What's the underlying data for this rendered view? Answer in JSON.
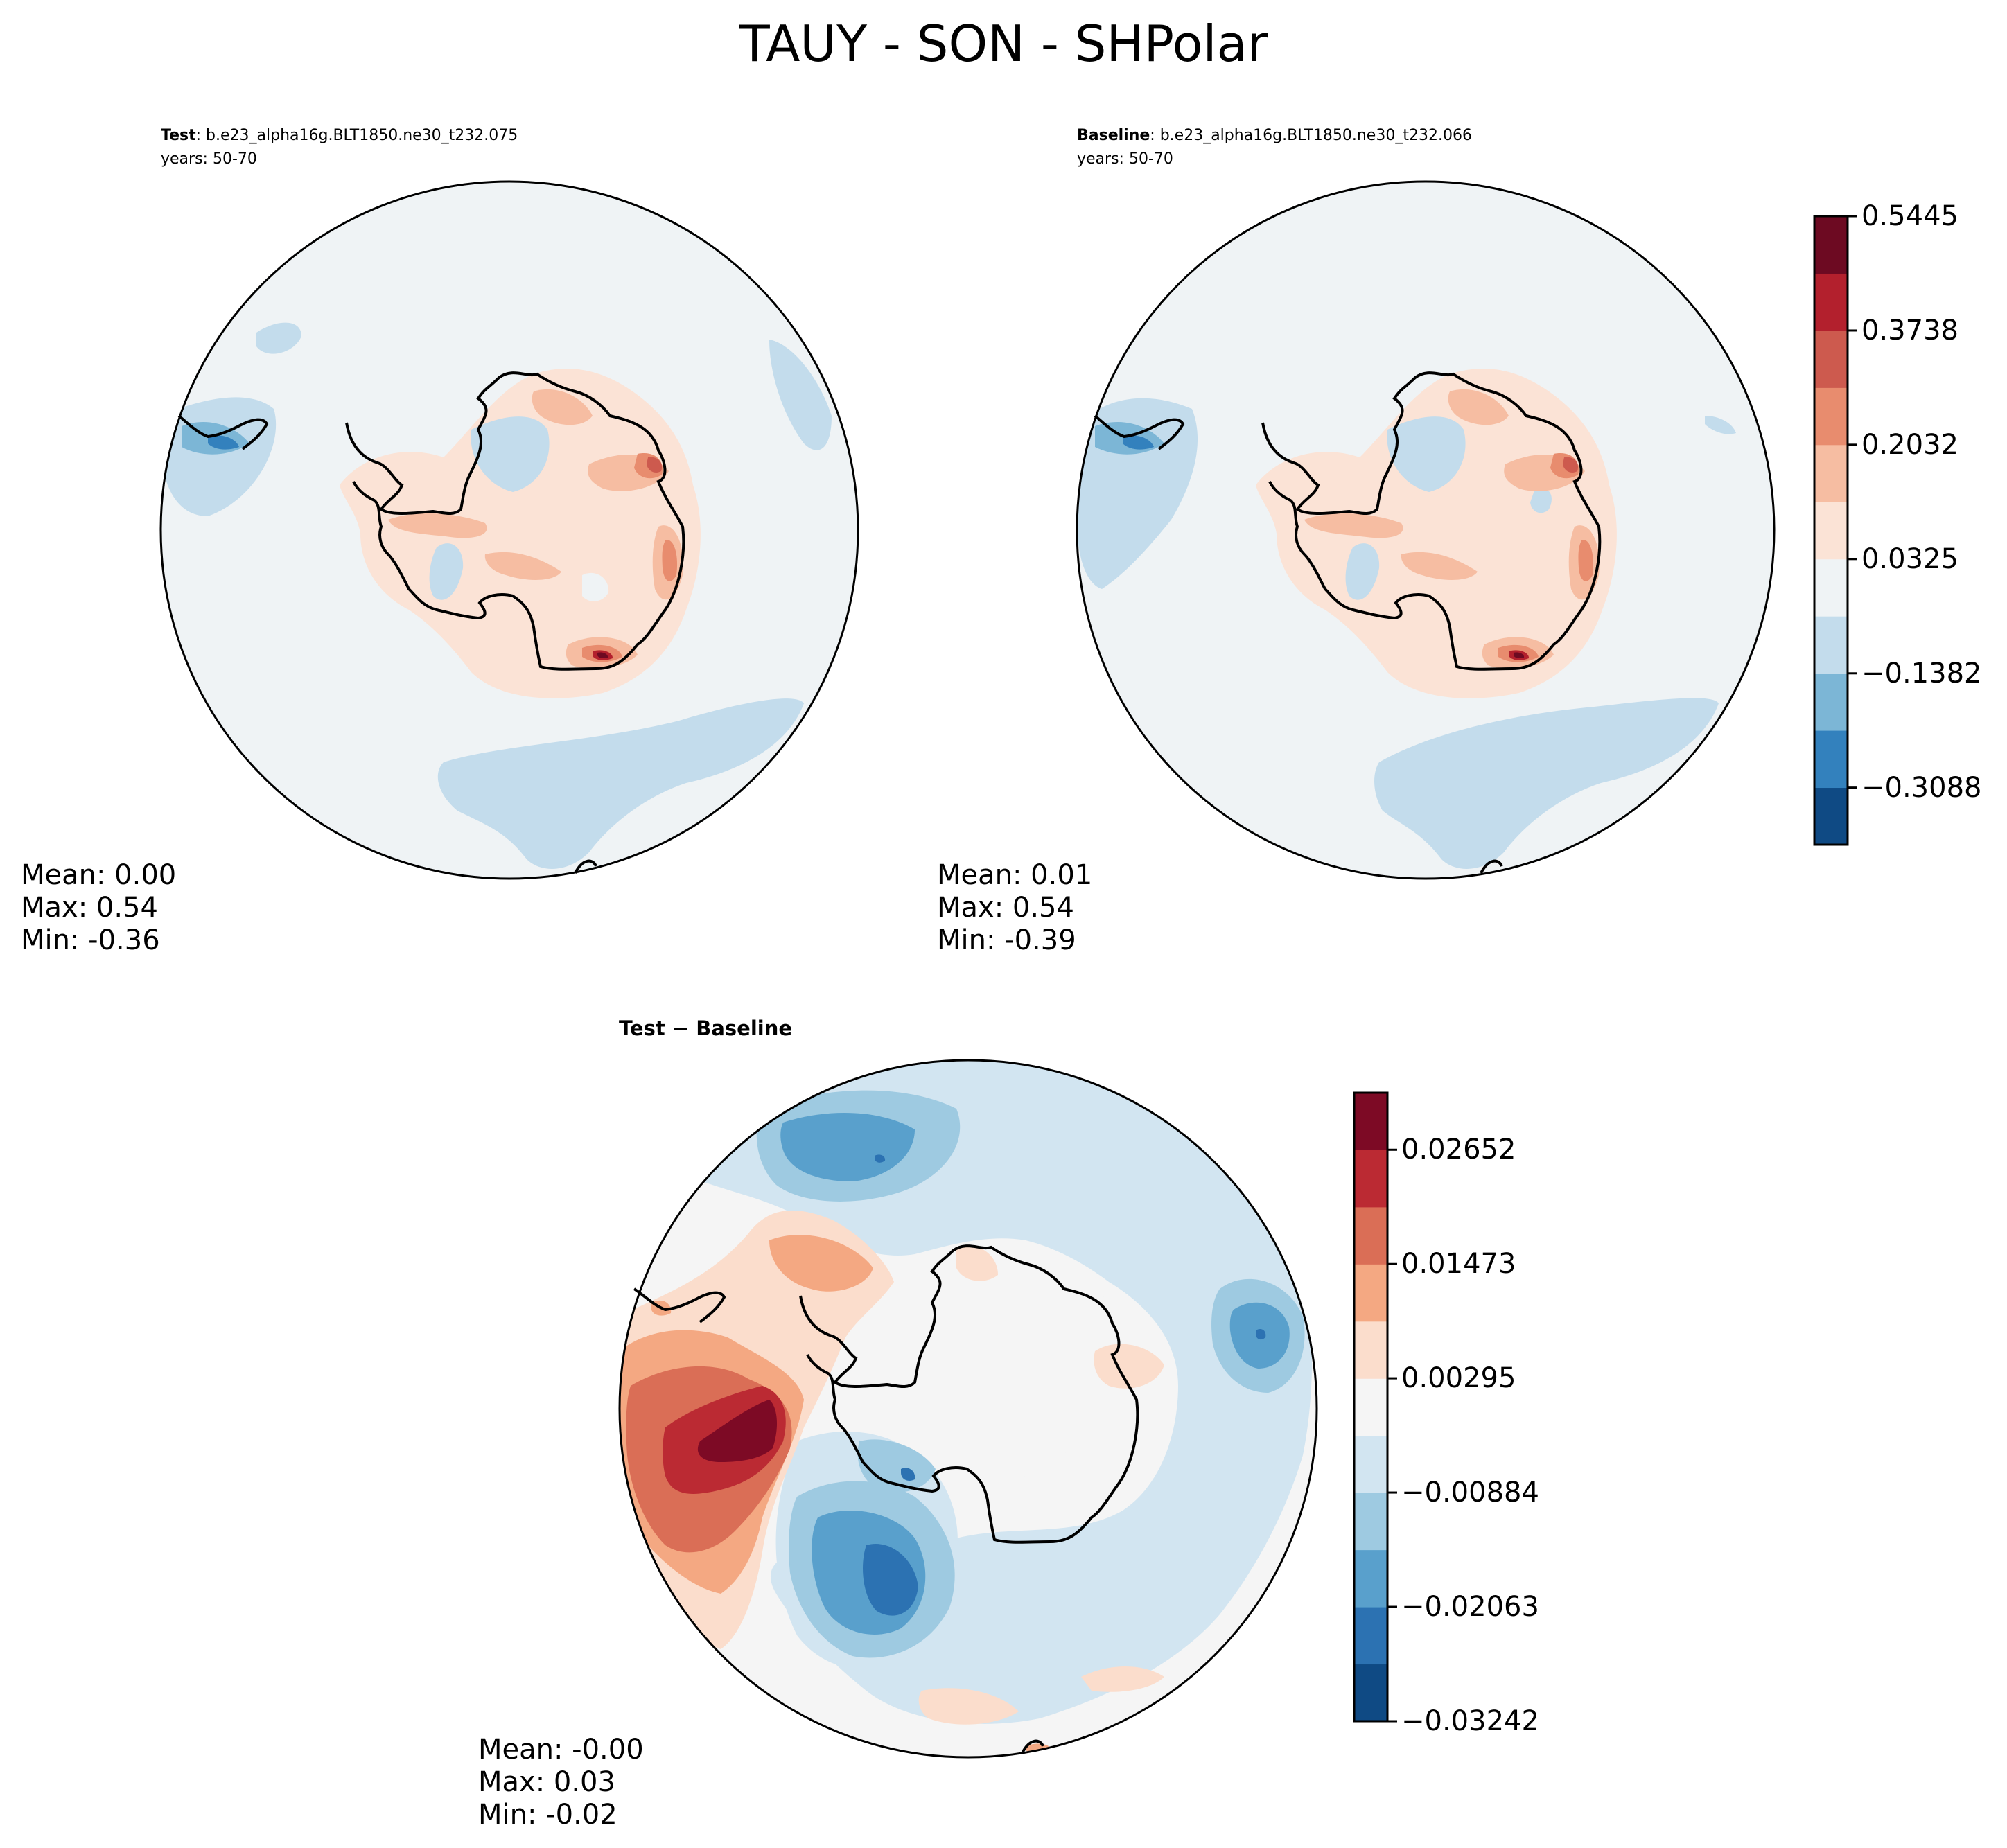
{
  "figure_title": "TAUY - SON - SHPolar",
  "chart_data": [
    {
      "type": "heatmap",
      "projection": "south-polar-stereographic",
      "panel": "test",
      "label_bold": "Test",
      "label_rest": ": b.e23_alpha16g.BLT1850.ne30_t232.075",
      "years": "years: 50-70",
      "stats": [
        "Mean:  0.00",
        "Max:  0.54",
        "Min: -0.36"
      ]
    },
    {
      "type": "heatmap",
      "projection": "south-polar-stereographic",
      "panel": "baseline",
      "label_bold": "Baseline",
      "label_rest": ": b.e23_alpha16g.BLT1850.ne30_t232.066",
      "years": "years: 50-70",
      "stats": [
        "Mean:  0.01",
        "Max:  0.54",
        "Min: -0.39"
      ]
    },
    {
      "type": "heatmap",
      "projection": "south-polar-stereographic",
      "panel": "difference",
      "title": "Test − Baseline",
      "stats": [
        "Mean: -0.00",
        "Max:  0.03",
        "Min: -0.02"
      ]
    }
  ],
  "colorbar_top": {
    "ticks": [
      "0.5445",
      "0.3738",
      "0.2032",
      "0.0325",
      "−0.1382",
      "−0.3088"
    ],
    "tick_values": [
      0.5445,
      0.3738,
      0.2032,
      0.0325,
      -0.1382,
      -0.3088
    ],
    "range": [
      -0.394,
      0.5445
    ],
    "colors": [
      "#0f4a84",
      "#3381bd",
      "#7cb6d6",
      "#c3dcec",
      "#eff3f5",
      "#fbe3d6",
      "#f6bda2",
      "#e88c6e",
      "#cd5a4e",
      "#b3202d",
      "#6d0a22"
    ]
  },
  "colorbar_bottom": {
    "ticks": [
      "0.02652",
      "0.01473",
      "0.00295",
      "−0.00884",
      "−0.02063",
      "−0.03242"
    ],
    "tick_values": [
      0.02652,
      0.01473,
      0.00295,
      -0.00884,
      -0.02063,
      -0.03242
    ],
    "range": [
      -0.03242,
      0.0324
    ],
    "colors": [
      "#0f4a84",
      "#2c72b2",
      "#59a0cc",
      "#9ecae1",
      "#d2e5f1",
      "#f5f5f5",
      "#fbddcc",
      "#f4a882",
      "#da6e56",
      "#bb2a33",
      "#7d0a25"
    ]
  },
  "colors": {
    "ocean_neutral": "#eff3f5",
    "ocean_neutral_diff": "#f5f5f5",
    "coast": "#000000"
  }
}
